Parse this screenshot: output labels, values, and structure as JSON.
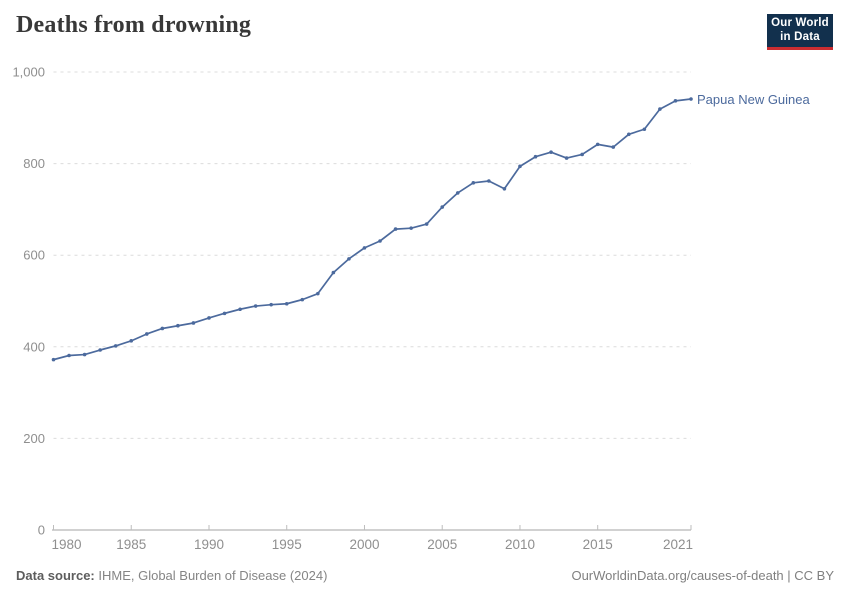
{
  "header": {
    "title": "Deaths from drowning"
  },
  "logo": {
    "line1": "Our World",
    "line2": "in Data",
    "bg_color": "#12304d",
    "accent_color": "#cb2d31"
  },
  "chart_data": {
    "type": "line",
    "title": "Deaths from drowning",
    "x": [
      1980,
      1981,
      1982,
      1983,
      1984,
      1985,
      1986,
      1987,
      1988,
      1989,
      1990,
      1991,
      1992,
      1993,
      1994,
      1995,
      1996,
      1997,
      1998,
      1999,
      2000,
      2001,
      2002,
      2003,
      2004,
      2005,
      2006,
      2007,
      2008,
      2009,
      2010,
      2011,
      2012,
      2013,
      2014,
      2015,
      2016,
      2017,
      2018,
      2019,
      2020,
      2021
    ],
    "series": [
      {
        "name": "Papua New Guinea",
        "color": "#4c6a9d",
        "values": [
          372,
          381,
          383,
          393,
          402,
          413,
          428,
          440,
          446,
          452,
          463,
          473,
          482,
          489,
          492,
          494,
          503,
          516,
          562,
          592,
          616,
          631,
          657,
          659,
          668,
          705,
          736,
          758,
          762,
          745,
          794,
          815,
          825,
          812,
          820,
          842,
          836,
          864,
          875,
          919,
          937,
          941
        ]
      }
    ],
    "xticks": [
      1980,
      1985,
      1990,
      1995,
      2000,
      2005,
      2010,
      2015,
      2021
    ],
    "yticks": [
      0,
      200,
      400,
      600,
      800,
      1000
    ],
    "xlim": [
      1980,
      2021
    ],
    "ylim": [
      0,
      1000
    ],
    "xlabel": "",
    "ylabel": "",
    "grid": "horizontal-dashed",
    "legend": "line-end-label",
    "marker": "dot"
  },
  "footer": {
    "source_label": "Data source:",
    "source_text": " IHME, Global Burden of Disease (2024)",
    "credit": "OurWorldinData.org/causes-of-death | CC BY"
  }
}
